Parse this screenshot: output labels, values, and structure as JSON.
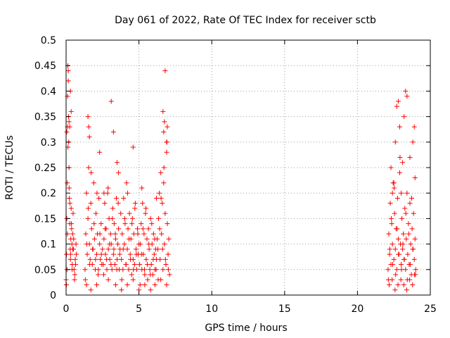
{
  "chart_data": {
    "type": "scatter",
    "title": "Day 061 of 2022, Rate Of TEC Index for receiver sctb",
    "xlabel": "GPS time / hours",
    "ylabel": "ROTI / TECUs",
    "xlim": [
      0,
      25
    ],
    "ylim": [
      0,
      0.5
    ],
    "xticks": [
      0,
      5,
      10,
      15,
      20,
      25
    ],
    "xtick_labels": [
      "0",
      "5",
      "10",
      "15",
      "20",
      "25"
    ],
    "yticks": [
      0,
      0.05,
      0.1,
      0.15,
      0.2,
      0.25,
      0.3,
      0.35,
      0.4,
      0.45,
      0.5
    ],
    "ytick_labels": [
      "0",
      "0.05",
      "0.1",
      "0.15",
      "0.2",
      "0.25",
      "0.3",
      "0.35",
      "0.4",
      "0.45",
      "0.5"
    ],
    "grid": true,
    "legend": "none",
    "marker": "+",
    "color": "#ff0000",
    "series": [
      {
        "x": [
          0.0,
          0.03,
          0.05,
          0.08,
          0.1,
          0.12,
          0.15,
          0.18,
          0.2,
          0.22,
          0.25,
          0.28,
          0.3,
          0.32,
          0.35,
          0.38,
          0.4,
          0.42,
          0.45,
          0.48,
          0.5,
          0.55,
          0.6,
          0.65,
          0.7,
          0.02,
          0.06,
          0.09,
          0.13,
          0.17,
          0.21,
          0.26,
          0.31,
          0.36,
          0.41,
          0.46,
          0.52,
          0.58,
          0.63,
          0.68,
          1.3,
          1.35,
          1.4,
          1.45,
          1.5,
          1.55,
          1.6,
          1.65,
          1.7,
          1.75,
          1.8,
          1.85,
          1.9,
          1.95,
          2.0,
          2.05,
          2.1,
          2.15,
          2.2,
          2.25,
          2.3,
          2.35,
          2.4,
          2.45,
          2.5,
          1.32,
          1.42,
          1.52,
          1.62,
          1.72,
          1.82,
          1.92,
          2.02,
          2.12,
          2.22,
          2.32,
          2.42,
          2.55,
          2.6,
          2.65,
          2.7,
          2.75,
          2.8,
          2.85,
          2.9,
          2.95,
          3.0,
          3.05,
          3.1,
          3.15,
          3.2,
          3.25,
          3.3,
          3.35,
          3.4,
          3.45,
          3.5,
          3.55,
          3.6,
          3.65,
          3.7,
          3.75,
          2.58,
          2.68,
          2.78,
          2.88,
          2.98,
          3.08,
          3.18,
          3.28,
          3.38,
          3.48,
          3.58,
          3.68,
          3.8,
          3.85,
          3.9,
          3.95,
          4.0,
          4.05,
          4.1,
          4.15,
          4.2,
          4.25,
          4.3,
          4.35,
          4.4,
          4.45,
          4.5,
          4.55,
          4.6,
          4.65,
          4.7,
          4.75,
          4.8,
          4.85,
          4.9,
          4.95,
          5.0,
          3.82,
          3.92,
          4.02,
          4.12,
          4.22,
          4.32,
          4.42,
          4.52,
          4.62,
          4.72,
          4.82,
          4.92,
          5.05,
          5.1,
          5.15,
          5.2,
          5.25,
          5.3,
          5.35,
          5.4,
          5.45,
          5.5,
          5.55,
          5.6,
          5.65,
          5.7,
          5.75,
          5.8,
          5.85,
          5.9,
          5.95,
          6.0,
          6.05,
          6.1,
          6.15,
          6.2,
          6.25,
          5.08,
          5.18,
          5.28,
          5.38,
          5.48,
          5.58,
          5.68,
          5.78,
          5.88,
          5.98,
          6.08,
          6.18,
          6.3,
          6.35,
          6.4,
          6.45,
          6.5,
          6.55,
          6.6,
          6.65,
          6.7,
          6.75,
          6.8,
          6.85,
          6.9,
          6.95,
          7.0,
          7.05,
          7.1,
          6.32,
          6.42,
          6.52,
          6.62,
          6.72,
          6.82,
          6.92,
          7.02,
          1.5,
          1.55,
          1.6,
          2.3,
          2.6,
          3.1,
          3.25,
          3.5,
          3.6,
          4.6,
          5.2,
          6.2,
          6.65,
          6.7,
          6.75,
          6.8,
          6.9,
          6.95,
          0.1,
          0.15,
          0.2,
          0.25,
          0.3,
          0.35,
          0.05,
          1.4,
          1.7,
          2.1,
          2.9,
          3.4,
          3.8,
          4.2,
          4.6,
          5.0,
          5.4,
          5.8,
          6.1,
          6.5,
          6.9,
          22.1,
          22.15,
          22.2,
          22.25,
          22.3,
          22.35,
          22.4,
          22.45,
          22.5,
          22.55,
          22.6,
          22.65,
          22.7,
          22.75,
          22.8,
          22.85,
          22.9,
          22.95,
          23.0,
          23.05,
          23.1,
          23.15,
          23.2,
          23.25,
          23.3,
          23.35,
          23.4,
          23.45,
          23.5,
          23.55,
          23.6,
          23.65,
          23.7,
          23.75,
          23.8,
          23.85,
          23.9,
          23.95,
          24.0,
          22.12,
          22.22,
          22.32,
          22.42,
          22.52,
          22.62,
          22.72,
          22.82,
          22.92,
          23.02,
          23.12,
          23.22,
          23.32,
          23.42,
          23.52,
          23.62,
          23.72,
          23.82,
          23.92,
          22.3,
          22.4,
          22.5,
          22.6,
          22.7,
          22.8,
          22.9,
          23.0,
          23.1,
          23.2,
          23.3,
          23.4,
          23.6,
          23.8,
          23.9,
          23.95,
          22.18,
          22.38,
          22.58,
          22.78,
          22.98,
          23.18,
          23.38,
          23.58,
          23.78,
          23.98
        ],
        "y": [
          0.03,
          0.08,
          0.15,
          0.22,
          0.33,
          0.45,
          0.44,
          0.3,
          0.25,
          0.19,
          0.14,
          0.09,
          0.07,
          0.11,
          0.17,
          0.13,
          0.1,
          0.06,
          0.12,
          0.16,
          0.09,
          0.05,
          0.04,
          0.06,
          0.08,
          0.02,
          0.05,
          0.12,
          0.29,
          0.35,
          0.21,
          0.18,
          0.08,
          0.14,
          0.05,
          0.09,
          0.11,
          0.03,
          0.07,
          0.1,
          0.05,
          0.12,
          0.2,
          0.08,
          0.15,
          0.25,
          0.1,
          0.07,
          0.18,
          0.13,
          0.06,
          0.09,
          0.22,
          0.11,
          0.05,
          0.16,
          0.08,
          0.12,
          0.04,
          0.19,
          0.1,
          0.07,
          0.14,
          0.06,
          0.09,
          0.03,
          0.1,
          0.17,
          0.06,
          0.24,
          0.09,
          0.14,
          0.07,
          0.2,
          0.05,
          0.12,
          0.08,
          0.06,
          0.11,
          0.18,
          0.08,
          0.13,
          0.05,
          0.2,
          0.09,
          0.15,
          0.07,
          0.12,
          0.1,
          0.05,
          0.17,
          0.08,
          0.14,
          0.06,
          0.11,
          0.19,
          0.07,
          0.1,
          0.13,
          0.05,
          0.09,
          0.16,
          0.04,
          0.13,
          0.07,
          0.21,
          0.1,
          0.06,
          0.15,
          0.09,
          0.12,
          0.05,
          0.18,
          0.08,
          0.07,
          0.12,
          0.05,
          0.19,
          0.1,
          0.14,
          0.06,
          0.22,
          0.09,
          0.13,
          0.05,
          0.16,
          0.08,
          0.11,
          0.04,
          0.15,
          0.07,
          0.12,
          0.06,
          0.18,
          0.09,
          0.05,
          0.13,
          0.08,
          0.1,
          0.03,
          0.09,
          0.15,
          0.06,
          0.2,
          0.11,
          0.07,
          0.14,
          0.05,
          0.17,
          0.08,
          0.12,
          0.06,
          0.1,
          0.14,
          0.05,
          0.18,
          0.08,
          0.12,
          0.04,
          0.16,
          0.07,
          0.11,
          0.03,
          0.13,
          0.09,
          0.05,
          0.15,
          0.06,
          0.1,
          0.04,
          0.12,
          0.08,
          0.05,
          0.09,
          0.07,
          0.11,
          0.02,
          0.08,
          0.13,
          0.05,
          0.17,
          0.06,
          0.1,
          0.04,
          0.14,
          0.07,
          0.11,
          0.05,
          0.09,
          0.15,
          0.2,
          0.07,
          0.24,
          0.12,
          0.18,
          0.05,
          0.22,
          0.1,
          0.16,
          0.06,
          0.28,
          0.14,
          0.08,
          0.11,
          0.04,
          0.03,
          0.13,
          0.19,
          0.09,
          0.25,
          0.07,
          0.3,
          0.05,
          0.35,
          0.33,
          0.31,
          0.28,
          0.2,
          0.38,
          0.32,
          0.26,
          0.24,
          0.29,
          0.21,
          0.19,
          0.36,
          0.32,
          0.34,
          0.44,
          0.3,
          0.33,
          0.39,
          0.42,
          0.34,
          0.33,
          0.4,
          0.36,
          0.32,
          0.02,
          0.01,
          0.02,
          0.03,
          0.02,
          0.01,
          0.02,
          0.03,
          0.01,
          0.02,
          0.01,
          0.02,
          0.03,
          0.02,
          0.05,
          0.12,
          0.08,
          0.18,
          0.06,
          0.14,
          0.1,
          0.22,
          0.07,
          0.16,
          0.09,
          0.13,
          0.05,
          0.19,
          0.11,
          0.08,
          0.24,
          0.1,
          0.06,
          0.15,
          0.09,
          0.12,
          0.07,
          0.17,
          0.05,
          0.11,
          0.2,
          0.08,
          0.14,
          0.06,
          0.18,
          0.1,
          0.04,
          0.13,
          0.09,
          0.16,
          0.07,
          0.11,
          0.05,
          0.03,
          0.09,
          0.15,
          0.06,
          0.21,
          0.04,
          0.13,
          0.08,
          0.27,
          0.05,
          0.1,
          0.07,
          0.16,
          0.03,
          0.12,
          0.06,
          0.19,
          0.09,
          0.04,
          0.25,
          0.2,
          0.22,
          0.3,
          0.37,
          0.38,
          0.33,
          0.2,
          0.26,
          0.35,
          0.4,
          0.39,
          0.27,
          0.3,
          0.33,
          0.23,
          0.02,
          0.03,
          0.01,
          0.02,
          0.03,
          0.02,
          0.01,
          0.03,
          0.02,
          0.04
        ]
      }
    ]
  }
}
